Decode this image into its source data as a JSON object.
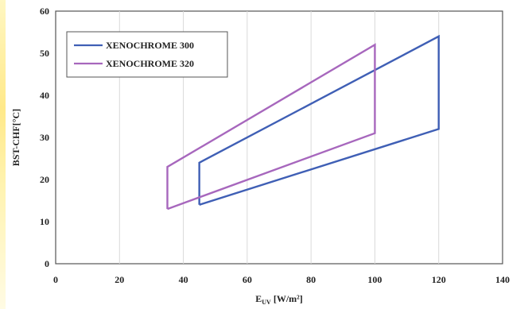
{
  "chart_data": {
    "type": "line",
    "title": "",
    "xlabel": "E",
    "xlabel_sub": "UV",
    "xlabel_unit": " [W/m²]",
    "ylabel": "BST-CHF[°C]",
    "xlim": [
      0,
      140
    ],
    "ylim": [
      0,
      60
    ],
    "x_ticks": [
      0,
      20,
      40,
      60,
      80,
      100,
      120,
      140
    ],
    "y_ticks": [
      0,
      10,
      20,
      30,
      40,
      50,
      60
    ],
    "grid": "vertical",
    "legend_position": "top-left",
    "series": [
      {
        "name": "XENOCHROME 300",
        "color": "#3f5fb5",
        "points": [
          [
            45,
            14
          ],
          [
            120,
            32
          ],
          [
            120,
            54
          ],
          [
            45,
            24
          ],
          [
            45,
            14
          ]
        ]
      },
      {
        "name": "XENOCHROME 320",
        "color": "#a767bd",
        "points": [
          [
            35,
            13
          ],
          [
            100,
            31
          ],
          [
            100,
            52
          ],
          [
            35,
            23
          ],
          [
            35,
            13
          ]
        ]
      }
    ]
  }
}
